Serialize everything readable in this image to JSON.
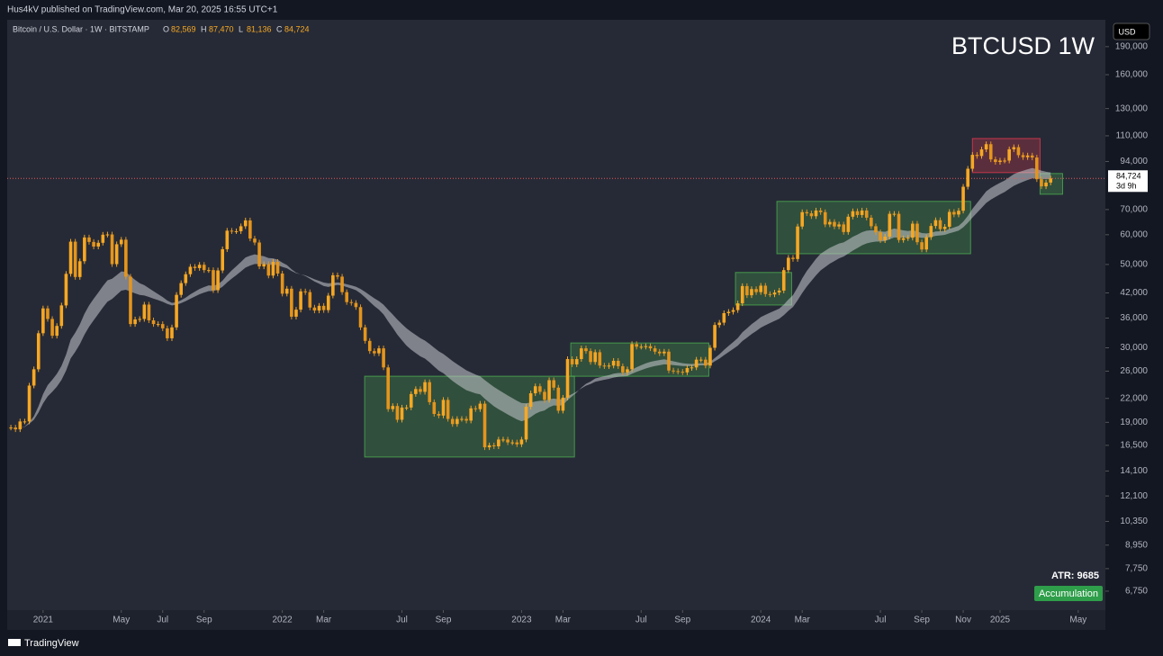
{
  "publisher": "Hus4kV published on TradingView.com, Mar 20, 2025 16:55 UTC+1",
  "footer": "TradingView",
  "chart_data": {
    "type": "candlestick",
    "title": "BTCUSD 1W",
    "symbol": "Bitcoin / U.S. Dollar · 1W · BITSTAMP",
    "ohlc_legend": [
      {
        "key": "O",
        "value": "82,569"
      },
      {
        "key": "H",
        "value": "87,470"
      },
      {
        "key": "L",
        "value": "81,136"
      },
      {
        "key": "C",
        "value": "84,724"
      }
    ],
    "currency": "USD",
    "log_scale": true,
    "grid": false,
    "up_color": "#f7a823",
    "down_color": "#e4951c",
    "ribbon_color": "#c8cad0",
    "ylim": [
      6010,
      224000
    ],
    "xlim": [
      -0.8,
      237.9
    ],
    "yticks": [
      {
        "value": 190000,
        "label": "190,000"
      },
      {
        "value": 160000,
        "label": "160,000"
      },
      {
        "value": 130000,
        "label": "130,000"
      },
      {
        "value": 110000,
        "label": "110,000"
      },
      {
        "value": 94000,
        "label": "94,000"
      },
      {
        "value": 70000,
        "label": "70,000"
      },
      {
        "value": 60000,
        "label": "60,000"
      },
      {
        "value": 50000,
        "label": "50,000"
      },
      {
        "value": 42000,
        "label": "42,000"
      },
      {
        "value": 36000,
        "label": "36,000"
      },
      {
        "value": 30000,
        "label": "30,000"
      },
      {
        "value": 26000,
        "label": "26,000"
      },
      {
        "value": 22000,
        "label": "22,000"
      },
      {
        "value": 19000,
        "label": "19,000"
      },
      {
        "value": 16500,
        "label": "16,500"
      },
      {
        "value": 14100,
        "label": "14,100"
      },
      {
        "value": 12100,
        "label": "12,100"
      },
      {
        "value": 10350,
        "label": "10,350"
      },
      {
        "value": 8950,
        "label": "8,950"
      },
      {
        "value": 7750,
        "label": "7,750"
      },
      {
        "value": 6750,
        "label": "6,750"
      }
    ],
    "xticks": [
      {
        "value": 7,
        "label": "2021"
      },
      {
        "value": 24,
        "label": "May"
      },
      {
        "value": 33,
        "label": "Jul"
      },
      {
        "value": 42,
        "label": "Sep"
      },
      {
        "value": 59,
        "label": "2022"
      },
      {
        "value": 68,
        "label": "Mar"
      },
      {
        "value": 85,
        "label": "Jul"
      },
      {
        "value": 94,
        "label": "Sep"
      },
      {
        "value": 111,
        "label": "2023"
      },
      {
        "value": 120,
        "label": "Mar"
      },
      {
        "value": 137,
        "label": "Jul"
      },
      {
        "value": 146,
        "label": "Sep"
      },
      {
        "value": 163,
        "label": "2024"
      },
      {
        "value": 172,
        "label": "Mar"
      },
      {
        "value": 189,
        "label": "Jul"
      },
      {
        "value": 198,
        "label": "Sep"
      },
      {
        "value": 207,
        "label": "Nov"
      },
      {
        "value": 215,
        "label": "2025"
      },
      {
        "value": 232,
        "label": "May"
      }
    ],
    "close": [
      18400,
      18200,
      19100,
      19100,
      23800,
      26300,
      32800,
      38200,
      35800,
      32300,
      34300,
      38900,
      47200,
      57500,
      46300,
      51000,
      59000,
      57400,
      55800,
      57100,
      60000,
      60100,
      50100,
      56600,
      58200,
      46400,
      34700,
      35700,
      35800,
      39100,
      35500,
      34700,
      34700,
      33800,
      31800,
      34000,
      41500,
      44600,
      47100,
      49300,
      48900,
      49900,
      48300,
      48300,
      42700,
      48200,
      54900,
      61500,
      61300,
      61300,
      63200,
      65500,
      58600,
      57200,
      49400,
      50100,
      46700,
      50800,
      47300,
      41800,
      43100,
      36300,
      37900,
      42400,
      42200,
      38400,
      37700,
      38800,
      37800,
      41300,
      46800,
      46400,
      42200,
      39700,
      39500,
      38500,
      34000,
      31300,
      29400,
      29000,
      29900,
      26600,
      20600,
      21000,
      19300,
      20800,
      20800,
      22600,
      23300,
      22900,
      24300,
      21500,
      20000,
      19800,
      21800,
      19400,
      18800,
      19400,
      19400,
      19200,
      20700,
      20600,
      21300,
      16300,
      16500,
      16400,
      17100,
      17100,
      16800,
      16800,
      16600,
      17100,
      20900,
      22700,
      23700,
      22900,
      21800,
      24600,
      23500,
      20400,
      22100,
      28000,
      27100,
      28000,
      29900,
      29400,
      27500,
      29200,
      26900,
      26800,
      26900,
      27700,
      26800,
      25800,
      26300,
      30700,
      30200,
      30200,
      30300,
      29900,
      29300,
      29000,
      29300,
      26100,
      26000,
      25900,
      25800,
      26500,
      26600,
      27900,
      27900,
      26900,
      30000,
      34500,
      35000,
      37100,
      37400,
      37800,
      39400,
      43800,
      41400,
      43000,
      42200,
      43900,
      41700,
      41600,
      42100,
      42600,
      48300,
      52100,
      51700,
      63100,
      68900,
      68400,
      67200,
      69600,
      68900,
      63900,
      64900,
      63100,
      63900,
      61000,
      67000,
      69300,
      67700,
      69600,
      66600,
      63200,
      60900,
      58000,
      59300,
      68200,
      68200,
      58100,
      58700,
      58900,
      64200,
      57300,
      54800,
      59100,
      63300,
      65600,
      62100,
      63000,
      69000,
      67900,
      69500,
      80500,
      89900,
      97900,
      97200,
      101200,
      104500,
      95200,
      93700,
      94500,
      94500,
      101300,
      102600,
      97700,
      96500,
      97500,
      96300,
      84300,
      80700,
      82600,
      84724
    ],
    "zones": [
      {
        "x": [
          76.9,
          122.5
        ],
        "y": [
          15360,
          25200
        ],
        "color": "#4caf50"
      },
      {
        "x": [
          121.7,
          151.7
        ],
        "y": [
          25200,
          30900
        ],
        "color": "#4caf50"
      },
      {
        "x": [
          157.5,
          169.7
        ],
        "y": [
          39000,
          47600
        ],
        "color": "#4caf50"
      },
      {
        "x": [
          166.5,
          208.6
        ],
        "y": [
          53400,
          73600
        ],
        "color": "#4caf50"
      },
      {
        "x": [
          209,
          223.7
        ],
        "y": [
          87800,
          108200
        ],
        "color": "#e53950"
      },
      {
        "x": [
          223.7,
          228.6
        ],
        "y": [
          76900,
          87300
        ],
        "color": "#4caf50"
      }
    ],
    "last_price": {
      "value": 84724,
      "label": "84,724"
    },
    "countdown": "3d 9h",
    "price_line_color": "#e05a5a",
    "atr_label": "ATR: 9685",
    "badge": "Accumulation",
    "badge_color": "#2e9e4a"
  }
}
